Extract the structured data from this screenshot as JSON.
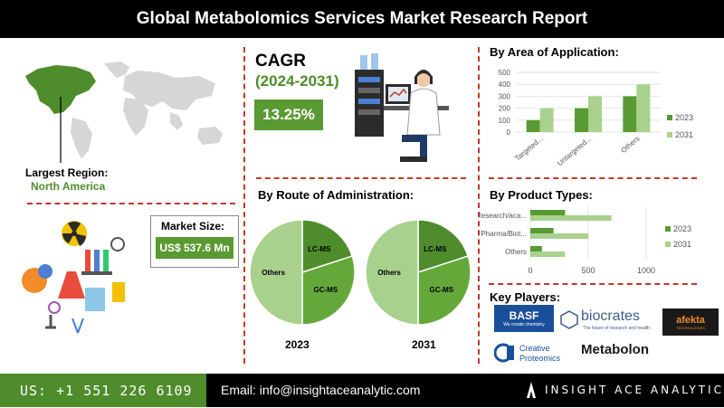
{
  "header": {
    "title": "Global Metabolomics Services Market Research Report"
  },
  "region": {
    "label": "Largest Region:",
    "value": "North America"
  },
  "cagr": {
    "title": "CAGR",
    "period": "(2024-2031)",
    "value": "13.25%"
  },
  "market_size": {
    "label": "Market Size:",
    "value": "US$ 537.6 Mn"
  },
  "sections": {
    "application": "By Area of Application:",
    "route": "By Route of Administration:",
    "product": "By Product Types:",
    "players": "Key Players:"
  },
  "key_players": [
    {
      "name": "BASF",
      "tagline": "We create chemistry"
    },
    {
      "name": "biocrates",
      "tagline": "The future of research and health"
    },
    {
      "name": "afekta",
      "tagline": "TECHNOLOGIES"
    },
    {
      "name": "Creative",
      "tagline": "Proteomics"
    },
    {
      "name": "Metabolon",
      "tagline": ""
    }
  ],
  "footer": {
    "phone": "US: +1 551 226 6109",
    "email": "Email: info@insightaceanalytic.com",
    "brand": "INSIGHT ACE ANALYTIC"
  },
  "colors": {
    "dark_green": "#5a9a32",
    "light_green": "#a9d18e",
    "accent_red": "#c0392b"
  },
  "chart_data": [
    {
      "type": "bar",
      "title": "By Area of Application:",
      "categories": [
        "Targeted...",
        "Untargeted...",
        "Others"
      ],
      "series": [
        {
          "name": "2023",
          "values": [
            100,
            200,
            300
          ]
        },
        {
          "name": "2031",
          "values": [
            200,
            300,
            400
          ]
        }
      ],
      "ylim": [
        0,
        500
      ],
      "yticks": [
        0,
        100,
        200,
        300,
        400,
        500
      ],
      "legend": "right"
    },
    {
      "type": "pie",
      "title": "2023",
      "slices": [
        {
          "label": "LC-MS",
          "value": 20
        },
        {
          "label": "GC-MS",
          "value": 30
        },
        {
          "label": "Others",
          "value": 50
        }
      ]
    },
    {
      "type": "pie",
      "title": "2031",
      "slices": [
        {
          "label": "LC-MS",
          "value": 20
        },
        {
          "label": "GC-MS",
          "value": 30
        },
        {
          "label": "Others",
          "value": 50
        }
      ]
    },
    {
      "type": "bar",
      "orientation": "horizontal",
      "title": "By Product Types:",
      "categories": [
        "Research/aca...",
        "Pharma/Biot...",
        "Others"
      ],
      "series": [
        {
          "name": "2023",
          "values": [
            300,
            200,
            100
          ]
        },
        {
          "name": "2031",
          "values": [
            700,
            500,
            300
          ]
        }
      ],
      "xlim": [
        0,
        1000
      ],
      "xticks": [
        0,
        500,
        1000
      ],
      "legend": "right"
    }
  ]
}
